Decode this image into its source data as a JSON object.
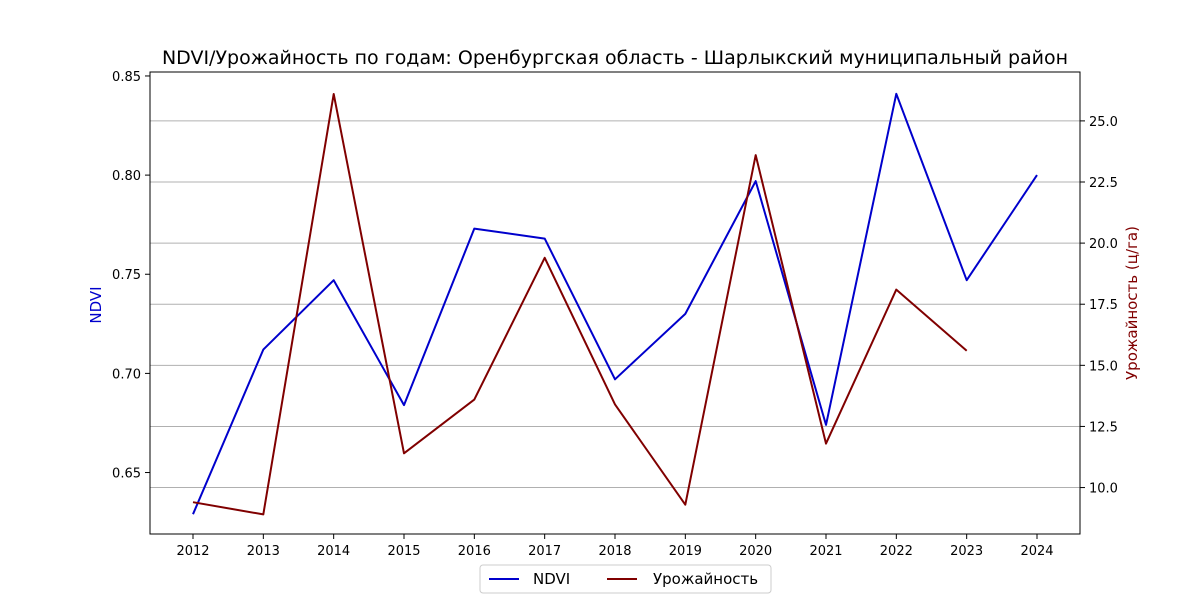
{
  "chart_data": {
    "type": "line",
    "title": "NDVI/Урожайность по годам: Оренбургская область - Шарлыкский муниципальный район",
    "x": [
      "2012",
      "2013",
      "2014",
      "2015",
      "2016",
      "2017",
      "2018",
      "2019",
      "2020",
      "2021",
      "2022",
      "2023",
      "2024"
    ],
    "xtick_labels": [
      "2012",
      "2013",
      "2014",
      "2015",
      "2016",
      "2017",
      "2018",
      "2019",
      "2020",
      "2021",
      "2022",
      "2023",
      "2024"
    ],
    "left_axis": {
      "label": "NDVI",
      "color": "#0000cc",
      "ylim": [
        0.619,
        0.852
      ],
      "ticks": [
        0.65,
        0.7,
        0.75,
        0.8,
        0.85
      ],
      "tick_labels": [
        "0.65",
        "0.70",
        "0.75",
        "0.80",
        "0.85"
      ]
    },
    "right_axis": {
      "label": "Урожайность (ц/га)",
      "color": "#800000",
      "ylim": [
        8.1,
        27.0
      ],
      "ticks": [
        10.0,
        12.5,
        15.0,
        17.5,
        20.0,
        22.5,
        25.0
      ],
      "tick_labels": [
        "10.0",
        "12.5",
        "15.0",
        "17.5",
        "20.0",
        "22.5",
        "25.0"
      ]
    },
    "grid": "right-axis horizontal",
    "legend": {
      "placement": "bottom-center",
      "entries": [
        "NDVI",
        "Урожайность"
      ]
    },
    "series": [
      {
        "name": "NDVI",
        "axis": "left",
        "color": "#0000cc",
        "values": [
          0.629,
          0.712,
          0.747,
          0.684,
          0.773,
          0.768,
          0.697,
          0.73,
          0.797,
          0.674,
          0.841,
          0.747,
          0.8
        ]
      },
      {
        "name": "Урожайность",
        "axis": "right",
        "color": "#800000",
        "values": [
          9.4,
          8.9,
          26.1,
          11.4,
          13.6,
          19.4,
          13.4,
          9.3,
          23.6,
          11.8,
          18.1,
          15.6,
          null
        ]
      }
    ]
  }
}
